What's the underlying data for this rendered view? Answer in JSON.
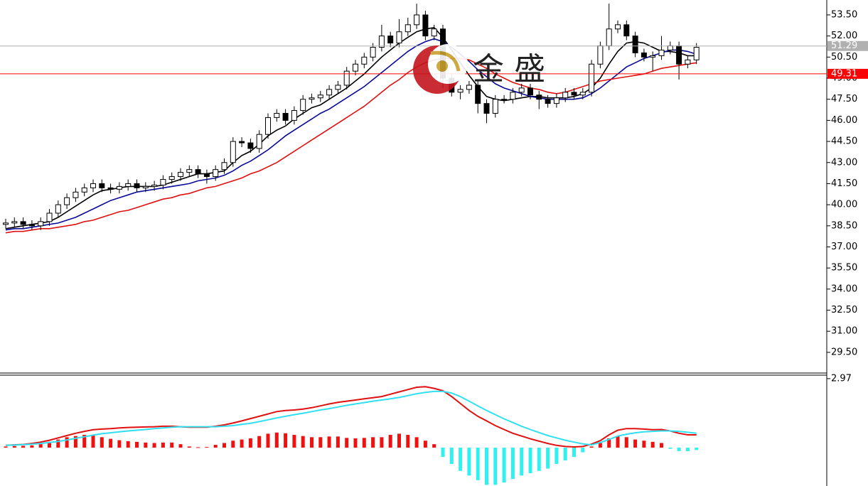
{
  "chart_data": [
    {
      "type": "candlestick",
      "watermark": "金 盛",
      "open": [
        38.6,
        38.7,
        38.8,
        38.6,
        38.5,
        38.8,
        39.4,
        40.0,
        40.5,
        40.9,
        41.2,
        41.5,
        41.2,
        41.1,
        41.3,
        41.5,
        41.2,
        41.3,
        41.4,
        41.8,
        42.0,
        42.3,
        42.5,
        42.2,
        42.0,
        42.5,
        43.0,
        44.5,
        44.4,
        44.0,
        45.0,
        46.2,
        46.5,
        46.0,
        46.7,
        47.5,
        47.6,
        47.8,
        48.2,
        48.5,
        49.5,
        50.0,
        50.5,
        51.2,
        52.0,
        51.5,
        52.3,
        52.8,
        53.5,
        52.0,
        52.5,
        49.0,
        48.0,
        48.2,
        48.5,
        47.2,
        46.5,
        47.5,
        47.5,
        48.0,
        48.3,
        47.8,
        47.5,
        47.2,
        47.6,
        48.0,
        47.8,
        48.0,
        50.0,
        51.3,
        52.5,
        52.8,
        52.0,
        50.8,
        50.5,
        50.6,
        51.0,
        51.3,
        50.0,
        50.3
      ],
      "high": [
        39.0,
        39.1,
        39.1,
        38.9,
        39.1,
        39.7,
        40.3,
        40.8,
        41.2,
        41.5,
        41.8,
        41.8,
        41.5,
        41.6,
        41.8,
        41.8,
        41.6,
        41.7,
        42.1,
        42.3,
        42.6,
        42.8,
        42.8,
        42.5,
        42.8,
        43.3,
        44.8,
        44.8,
        44.7,
        45.3,
        46.5,
        46.8,
        46.8,
        47.0,
        47.8,
        47.9,
        48.1,
        48.5,
        48.8,
        49.8,
        50.3,
        50.8,
        51.5,
        52.8,
        52.3,
        53.2,
        53.3,
        54.3,
        53.8,
        52.8,
        52.8,
        49.3,
        48.5,
        48.8,
        48.8,
        47.5,
        47.8,
        47.8,
        48.3,
        48.6,
        48.6,
        48.1,
        47.8,
        47.9,
        48.3,
        48.3,
        48.3,
        50.3,
        51.6,
        54.3,
        53.1,
        53.1,
        52.3,
        51.1,
        50.9,
        52.0,
        51.6,
        51.6,
        50.6,
        51.5
      ],
      "low": [
        38.3,
        38.4,
        38.3,
        38.2,
        38.2,
        38.5,
        39.1,
        39.7,
        40.2,
        40.6,
        40.9,
        40.9,
        40.8,
        40.8,
        41.0,
        40.9,
        40.9,
        41.0,
        41.1,
        41.5,
        41.7,
        42.0,
        41.9,
        41.5,
        41.7,
        42.2,
        42.7,
        44.1,
        43.7,
        43.7,
        44.7,
        45.9,
        45.7,
        45.7,
        46.4,
        47.2,
        47.3,
        47.5,
        47.9,
        48.2,
        49.2,
        49.7,
        50.2,
        50.9,
        51.2,
        51.2,
        52.0,
        52.5,
        51.7,
        51.7,
        48.3,
        47.7,
        47.5,
        47.9,
        46.5,
        45.8,
        46.2,
        47.2,
        47.2,
        47.7,
        47.5,
        46.8,
        46.9,
        46.9,
        47.3,
        47.5,
        47.5,
        47.7,
        49.7,
        51.0,
        52.2,
        51.7,
        50.5,
        50.2,
        49.5,
        50.3,
        50.7,
        48.9,
        49.7,
        50.0
      ],
      "close": [
        38.7,
        38.8,
        38.6,
        38.5,
        38.8,
        39.4,
        40.0,
        40.5,
        40.9,
        41.2,
        41.5,
        41.2,
        41.1,
        41.3,
        41.5,
        41.2,
        41.3,
        41.4,
        41.8,
        42.0,
        42.3,
        42.5,
        42.2,
        42.0,
        42.5,
        43.0,
        44.5,
        44.4,
        44.0,
        45.0,
        46.2,
        46.5,
        46.0,
        46.7,
        47.5,
        47.6,
        47.8,
        48.2,
        48.5,
        49.5,
        50.0,
        50.5,
        51.2,
        52.0,
        51.5,
        52.3,
        52.8,
        53.5,
        52.0,
        52.5,
        49.0,
        48.0,
        48.2,
        48.5,
        47.2,
        46.5,
        47.5,
        47.5,
        48.0,
        48.3,
        47.8,
        47.5,
        47.2,
        47.6,
        48.0,
        47.8,
        48.0,
        50.0,
        51.3,
        52.5,
        52.8,
        52.0,
        50.8,
        50.5,
        50.6,
        51.0,
        51.3,
        50.0,
        50.3,
        51.2
      ],
      "series": [
        {
          "color": "#000000",
          "values": [
            38.3,
            38.4,
            38.5,
            38.6,
            38.7,
            38.8,
            39.1,
            39.5,
            39.9,
            40.3,
            40.7,
            41.0,
            41.1,
            41.2,
            41.3,
            41.3,
            41.3,
            41.3,
            41.4,
            41.6,
            41.8,
            42.0,
            42.2,
            42.2,
            42.3,
            42.4,
            43.0,
            43.5,
            43.8,
            44.3,
            44.9,
            45.3,
            45.6,
            46.1,
            46.5,
            46.9,
            47.1,
            47.5,
            47.9,
            48.3,
            48.8,
            49.3,
            49.9,
            50.5,
            51.0,
            51.5,
            51.9,
            52.3,
            52.5,
            52.6,
            51.9,
            51.0,
            50.1,
            49.2,
            48.4,
            47.7,
            47.5,
            47.4,
            47.5,
            47.6,
            47.7,
            47.7,
            47.6,
            47.6,
            47.6,
            47.7,
            47.9,
            48.3,
            49.0,
            50.0,
            50.9,
            51.5,
            51.6,
            51.5,
            51.2,
            50.9,
            50.9,
            50.8,
            50.6,
            50.6
          ]
        },
        {
          "color": "#0a0a9a",
          "values": [
            38.2,
            38.3,
            38.3,
            38.4,
            38.5,
            38.6,
            38.7,
            38.9,
            39.1,
            39.4,
            39.7,
            40.0,
            40.3,
            40.5,
            40.7,
            40.9,
            41.0,
            41.1,
            41.2,
            41.3,
            41.4,
            41.5,
            41.7,
            41.8,
            41.9,
            42.1,
            42.4,
            42.8,
            43.1,
            43.5,
            43.9,
            44.4,
            44.9,
            45.3,
            45.7,
            46.1,
            46.5,
            46.8,
            47.2,
            47.6,
            48.0,
            48.4,
            48.9,
            49.4,
            49.9,
            50.4,
            50.9,
            51.3,
            51.6,
            51.8,
            51.6,
            51.2,
            50.7,
            50.2,
            49.6,
            49.1,
            48.6,
            48.3,
            48.1,
            47.9,
            47.7,
            47.6,
            47.5,
            47.5,
            47.5,
            47.5,
            47.6,
            47.9,
            48.3,
            48.8,
            49.3,
            49.8,
            50.1,
            50.4,
            50.6,
            50.8,
            51.0,
            51.0,
            50.9,
            50.7
          ]
        },
        {
          "color": "#e01010",
          "values": [
            38.0,
            38.1,
            38.1,
            38.2,
            38.3,
            38.3,
            38.4,
            38.5,
            38.6,
            38.8,
            38.9,
            39.1,
            39.3,
            39.5,
            39.6,
            39.8,
            40.0,
            40.2,
            40.4,
            40.5,
            40.7,
            40.8,
            41.0,
            41.2,
            41.3,
            41.5,
            41.7,
            41.9,
            42.2,
            42.4,
            42.7,
            43.0,
            43.4,
            43.8,
            44.2,
            44.6,
            45.0,
            45.4,
            45.8,
            46.2,
            46.6,
            47.0,
            47.5,
            48.0,
            48.5,
            48.9,
            49.4,
            49.8,
            50.1,
            50.3,
            50.4,
            50.4,
            50.4,
            50.3,
            50.0,
            49.7,
            49.3,
            49.0,
            48.7,
            48.5,
            48.3,
            48.2,
            48.0,
            47.9,
            48.0,
            48.2,
            48.4,
            48.6,
            48.8,
            48.9,
            49.0,
            49.1,
            49.2,
            49.3,
            49.5,
            49.7,
            49.8,
            49.9,
            50.0,
            50.1
          ]
        }
      ],
      "price_lines": [
        {
          "value": 51.29,
          "color": "#b0b0b0"
        },
        {
          "value": 49.31,
          "color": "#ff0000"
        }
      ],
      "ylim": [
        28.03,
        54.56
      ],
      "yticks": [
        {
          "value": 29.5,
          "label": "29.50"
        },
        {
          "value": 31,
          "label": "31.00"
        },
        {
          "value": 32.5,
          "label": "32.50"
        },
        {
          "value": 34,
          "label": "34.00"
        },
        {
          "value": 35.5,
          "label": "35.50"
        },
        {
          "value": 37,
          "label": "37.00"
        },
        {
          "value": 38.5,
          "label": "38.50"
        },
        {
          "value": 40,
          "label": "40.00"
        },
        {
          "value": 41.5,
          "label": "41.50"
        },
        {
          "value": 43,
          "label": "43.00"
        },
        {
          "value": 44.5,
          "label": "44.50"
        },
        {
          "value": 46,
          "label": "46.00"
        },
        {
          "value": 47.5,
          "label": "47.50"
        },
        {
          "value": 49,
          "label": "49.00"
        },
        {
          "value": 50.5,
          "label": "50.50"
        },
        {
          "value": 52,
          "label": "52.00"
        },
        {
          "value": 53.5,
          "label": "53.50"
        }
      ]
    },
    {
      "type": "macd",
      "series": [
        {
          "color": "#e01010",
          "values": [
            0.1,
            0.12,
            0.14,
            0.18,
            0.24,
            0.32,
            0.42,
            0.52,
            0.62,
            0.7,
            0.77,
            0.8,
            0.82,
            0.85,
            0.87,
            0.88,
            0.89,
            0.9,
            0.92,
            0.92,
            0.9,
            0.88,
            0.88,
            0.88,
            0.92,
            0.98,
            1.06,
            1.15,
            1.25,
            1.35,
            1.45,
            1.55,
            1.6,
            1.62,
            1.66,
            1.72,
            1.8,
            1.88,
            1.95,
            2.0,
            2.05,
            2.1,
            2.15,
            2.2,
            2.3,
            2.4,
            2.5,
            2.6,
            2.62,
            2.55,
            2.45,
            2.2,
            1.9,
            1.6,
            1.35,
            1.15,
            0.95,
            0.78,
            0.62,
            0.5,
            0.38,
            0.28,
            0.18,
            0.1,
            0.05,
            0.03,
            0.05,
            0.15,
            0.3,
            0.55,
            0.75,
            0.82,
            0.82,
            0.8,
            0.77,
            0.78,
            0.72,
            0.62,
            0.55,
            0.55
          ]
        },
        {
          "color": "#30e0f0",
          "values": [
            0.1,
            0.11,
            0.13,
            0.15,
            0.18,
            0.22,
            0.27,
            0.33,
            0.4,
            0.47,
            0.54,
            0.6,
            0.64,
            0.68,
            0.72,
            0.75,
            0.78,
            0.82,
            0.85,
            0.88,
            0.9,
            0.9,
            0.9,
            0.9,
            0.9,
            0.92,
            0.95,
            1.0,
            1.05,
            1.12,
            1.2,
            1.28,
            1.35,
            1.42,
            1.48,
            1.55,
            1.62,
            1.68,
            1.75,
            1.82,
            1.88,
            1.94,
            2.0,
            2.05,
            2.1,
            2.16,
            2.24,
            2.32,
            2.38,
            2.42,
            2.42,
            2.35,
            2.2,
            2.0,
            1.8,
            1.6,
            1.42,
            1.24,
            1.08,
            0.92,
            0.78,
            0.65,
            0.52,
            0.42,
            0.32,
            0.24,
            0.16,
            0.12,
            0.22,
            0.35,
            0.5,
            0.58,
            0.64,
            0.68,
            0.7,
            0.72,
            0.72,
            0.7,
            0.66,
            0.62
          ]
        }
      ],
      "histogram": {
        "colors": [
          "#f01010",
          "#30f0f0"
        ],
        "values": [
          0.05,
          0.07,
          0.08,
          0.1,
          0.15,
          0.25,
          0.35,
          0.45,
          0.5,
          0.55,
          0.55,
          0.45,
          0.38,
          0.32,
          0.28,
          0.25,
          0.22,
          0.2,
          0.22,
          0.22,
          0.15,
          0.05,
          0.02,
          0.03,
          0.12,
          0.2,
          0.3,
          0.35,
          0.4,
          0.5,
          0.6,
          0.65,
          0.62,
          0.55,
          0.5,
          0.45,
          0.45,
          0.48,
          0.48,
          0.42,
          0.4,
          0.42,
          0.45,
          0.45,
          0.55,
          0.6,
          0.55,
          0.45,
          0.3,
          0.15,
          -0.4,
          -0.7,
          -1.0,
          -1.2,
          -1.4,
          -1.6,
          -1.6,
          -1.5,
          -1.35,
          -1.2,
          -1.1,
          -1.0,
          -0.9,
          -0.7,
          -0.55,
          -0.4,
          -0.2,
          0.05,
          0.2,
          0.4,
          0.5,
          0.45,
          0.35,
          0.3,
          0.25,
          0.2,
          -0.05,
          -0.15,
          -0.15,
          -0.1
        ]
      },
      "ylim": [
        -1.65,
        3.15
      ],
      "yticks": [
        2.97
      ]
    }
  ]
}
